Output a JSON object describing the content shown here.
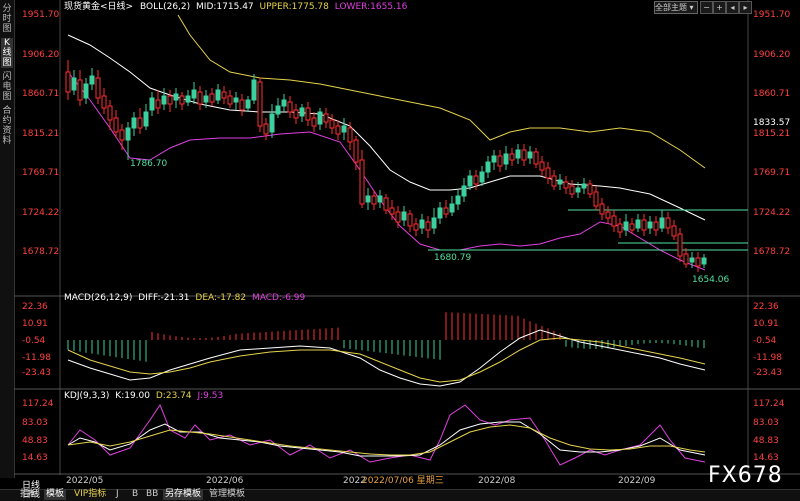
{
  "main_header": {
    "instrument": "现货黄金<日线>",
    "boll": "BOLL(26,2)",
    "mid": "MID:1715.47",
    "upper": "UPPER:1775.78",
    "lower": "LOWER:1655.16"
  },
  "macd_header": {
    "name": "MACD(26,12,9)",
    "diff": "DIFF:-21.31",
    "dea": "DEA:-17.82",
    "macd": "MACD:-6.99"
  },
  "kdj_header": {
    "name": "KDJ(9,3,3)",
    "k": "K:19.00",
    "d": "D:23.74",
    "j": "J:9.53"
  },
  "price_ticks": [
    "1951.70",
    "1906.20",
    "1860.71",
    "1815.21",
    "1769.71",
    "1724.22",
    "1678.72"
  ],
  "current_price": "1833.57",
  "macd_ticks": [
    "22.36",
    "10.91",
    "-0.54",
    "-11.98",
    "-23.43"
  ],
  "kdj_ticks": [
    "117.24",
    "83.03",
    "48.83",
    "14.63"
  ],
  "annotations": {
    "low1": "1786.70",
    "low2": "1680.79",
    "low3": "1654.06"
  },
  "x_ticks": [
    "2022/05",
    "2022/06",
    "2022",
    "2022/07/06 星期三",
    "2022/08",
    "2022/09"
  ],
  "left_tabs": [
    "分时图",
    "K线图",
    "闪电图",
    "合约资料"
  ],
  "bottom_tabs": [
    "日线",
    "指标",
    "模板",
    "VIP指标",
    "J",
    "B",
    "BB",
    "另存模板",
    "管理模板"
  ],
  "theme_select": "全部主题",
  "watermark": "FX678",
  "colors": {
    "up": "#3cd0a0",
    "down": "#ff3030",
    "mid_line": "#ffffff",
    "upper_line": "#e6d24c",
    "lower_line": "#e040e0",
    "label_green": "#50e0a0"
  }
}
